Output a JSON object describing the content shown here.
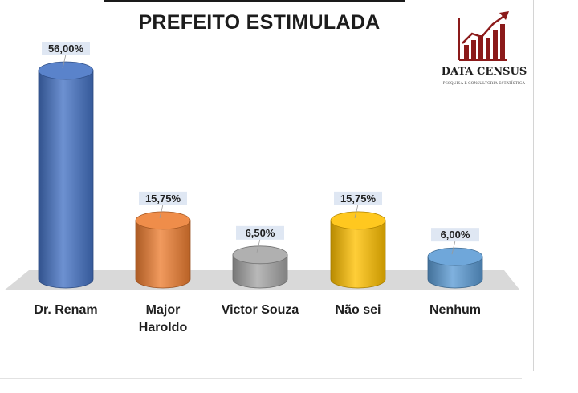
{
  "chart_data": {
    "type": "bar",
    "title": "PREFEITO ESTIMULADA",
    "categories": [
      "Dr. Renam",
      "Major Haroldo",
      "Victor Souza",
      "Não sei",
      "Nenhum"
    ],
    "category_lines": [
      [
        "Dr. Renam"
      ],
      [
        "Major",
        "Haroldo"
      ],
      [
        "Victor Souza"
      ],
      [
        "Não sei"
      ],
      [
        "Nenhum"
      ]
    ],
    "values": [
      56.0,
      15.75,
      6.5,
      15.75,
      6.0
    ],
    "data_labels": [
      "56,00%",
      "15,75%",
      "6,50%",
      "15,75%",
      "6,00%"
    ],
    "colors": [
      "#4472c4",
      "#ed7d31",
      "#a5a5a5",
      "#ffc000",
      "#5b9bd5"
    ],
    "ylim": [
      0,
      56
    ],
    "grid": false,
    "legend": "none"
  },
  "brand": {
    "name": "DATA CENSUS",
    "tagline": "PESQUISA E CONSULTORIA ESTATÍSTICA",
    "color": "#8b1a1a"
  }
}
